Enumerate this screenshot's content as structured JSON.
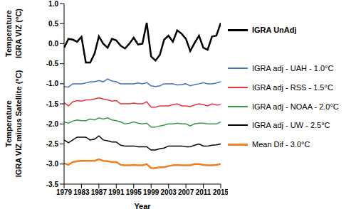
{
  "chart_data": {
    "type": "line",
    "xlabel": "Year",
    "ylabel": [
      "Temperature IGRA VIZ (°C)",
      "Temperature IGRA VIZ minus Satellite (°C)"
    ],
    "x": [
      1979,
      1980,
      1981,
      1982,
      1983,
      1984,
      1985,
      1986,
      1987,
      1988,
      1989,
      1990,
      1991,
      1992,
      1993,
      1994,
      1995,
      1996,
      1997,
      1998,
      1999,
      2000,
      2001,
      2002,
      2003,
      2004,
      2005,
      2006,
      2007,
      2008,
      2009,
      2010,
      2011,
      2012,
      2013,
      2014,
      2015
    ],
    "xlim": [
      1979,
      2015
    ],
    "xticks": [
      1979,
      1983,
      1987,
      1991,
      1995,
      1999,
      2003,
      2007,
      2011,
      2015
    ],
    "ylim": [
      -3.5,
      1
    ],
    "yticks": [
      {
        "value": -3.5,
        "label": "-3.5"
      },
      {
        "value": -3,
        "label": "-3.0"
      },
      {
        "value": -2.5,
        "label": "-2.5"
      },
      {
        "value": -2,
        "label": "-2.0"
      },
      {
        "value": -1.5,
        "label": "-1.5"
      },
      {
        "value": -1,
        "label": "-1.0"
      },
      {
        "value": -0.5,
        "label": "-0.5"
      },
      {
        "value": 0,
        "label": "0.0"
      },
      {
        "value": 0.5,
        "label": "0.5"
      },
      {
        "value": 1,
        "label": "1.0"
      }
    ],
    "grid": false,
    "legend": "right",
    "series": [
      {
        "name": "IGRA UnAdj",
        "color": "#000000",
        "values": [
          -0.1,
          0.12,
          0.1,
          0.05,
          0.17,
          -0.47,
          -0.47,
          -0.25,
          0.18,
          0.0,
          -0.1,
          0.12,
          0.08,
          -0.05,
          -0.12,
          0.0,
          0.15,
          -0.02,
          0.0,
          0.52,
          -0.32,
          -0.42,
          -0.28,
          0.1,
          0.2,
          0.05,
          0.33,
          0.25,
          0.12,
          -0.18,
          0.02,
          0.2,
          -0.1,
          -0.15,
          0.18,
          0.2,
          0.52
        ]
      },
      {
        "name": "IGRA adj - UAH - 1.0°C",
        "color": "#4472c4",
        "values": [
          -1.07,
          -1.08,
          -1.0,
          -1.0,
          -1.0,
          -0.98,
          -0.95,
          -0.95,
          -0.92,
          -0.95,
          -0.88,
          -0.93,
          -0.95,
          -1.0,
          -1.0,
          -1.0,
          -1.0,
          -0.98,
          -1.0,
          -0.97,
          -1.05,
          -1.07,
          -1.05,
          -1.0,
          -1.0,
          -1.0,
          -1.03,
          -1.02,
          -1.0,
          -1.05,
          -1.02,
          -1.0,
          -0.97,
          -1.0,
          -1.0,
          -0.98,
          -0.95
        ]
      },
      {
        "name": "IGRA adj - RSS - 1.5°C",
        "color": "#e8323c",
        "values": [
          -1.47,
          -1.55,
          -1.45,
          -1.42,
          -1.43,
          -1.4,
          -1.4,
          -1.38,
          -1.35,
          -1.38,
          -1.4,
          -1.43,
          -1.42,
          -1.5,
          -1.5,
          -1.5,
          -1.48,
          -1.5,
          -1.5,
          -1.45,
          -1.58,
          -1.58,
          -1.55,
          -1.55,
          -1.55,
          -1.52,
          -1.5,
          -1.55,
          -1.55,
          -1.57,
          -1.53,
          -1.5,
          -1.52,
          -1.55,
          -1.5,
          -1.53,
          -1.52
        ]
      },
      {
        "name": "IGRA adj - NOAA - 2.0°C",
        "color": "#3a9a4a",
        "values": [
          -1.95,
          -1.98,
          -1.93,
          -1.9,
          -1.92,
          -1.92,
          -1.88,
          -1.9,
          -1.85,
          -1.88,
          -1.85,
          -1.9,
          -1.92,
          -1.95,
          -2.0,
          -1.98,
          -1.95,
          -1.98,
          -2.0,
          -1.98,
          -2.08,
          -2.08,
          -2.05,
          -2.03,
          -2.0,
          -2.0,
          -1.98,
          -2.0,
          -2.0,
          -2.05,
          -2.0,
          -1.98,
          -1.98,
          -2.0,
          -2.0,
          -2.0,
          -1.95
        ]
      },
      {
        "name": "IGRA adj - UW - 2.5°C",
        "color": "#000000",
        "values": [
          -2.4,
          -2.47,
          -2.4,
          -2.33,
          -2.33,
          -2.33,
          -2.4,
          -2.38,
          -2.3,
          -2.4,
          -2.42,
          -2.45,
          -2.45,
          -2.53,
          -2.55,
          -2.55,
          -2.55,
          -2.57,
          -2.57,
          -2.57,
          -2.65,
          -2.65,
          -2.62,
          -2.6,
          -2.55,
          -2.55,
          -2.55,
          -2.55,
          -2.57,
          -2.57,
          -2.53,
          -2.5,
          -2.55,
          -2.55,
          -2.53,
          -2.52,
          -2.5
        ]
      },
      {
        "name": "Mean Dif - 3.0°C",
        "color": "#f07f1e",
        "values": [
          -2.98,
          -3.02,
          -2.95,
          -2.93,
          -2.92,
          -2.92,
          -2.92,
          -2.92,
          -2.88,
          -2.92,
          -2.93,
          -2.95,
          -2.95,
          -3.02,
          -3.03,
          -3.03,
          -3.02,
          -3.03,
          -3.03,
          -3.0,
          -3.1,
          -3.1,
          -3.08,
          -3.08,
          -3.05,
          -3.03,
          -3.02,
          -3.03,
          -3.03,
          -3.03,
          -3.0,
          -3.0,
          -3.02,
          -3.03,
          -3.03,
          -3.02,
          -3.0
        ]
      }
    ]
  }
}
